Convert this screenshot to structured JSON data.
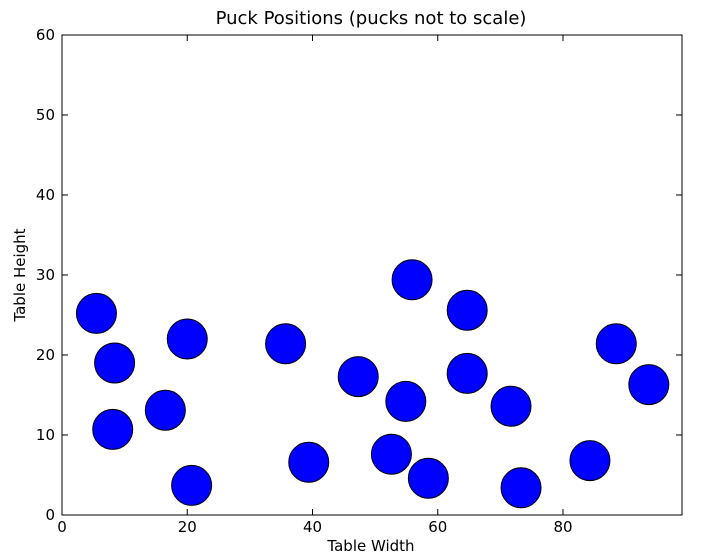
{
  "chart_data": {
    "type": "scatter",
    "title": "Puck Positions (pucks not to scale)",
    "xlabel": "Table Width",
    "ylabel": "Table Height",
    "xlim": [
      0,
      99
    ],
    "ylim": [
      0,
      60
    ],
    "xticks": [
      0,
      20,
      40,
      60,
      80
    ],
    "yticks": [
      0,
      10,
      20,
      30,
      40,
      50,
      60
    ],
    "grid": false,
    "marker_color": "#0000ff",
    "marker_edge_color": "#000000",
    "points": [
      {
        "x": 5.5,
        "y": 25.2
      },
      {
        "x": 8.4,
        "y": 19.0
      },
      {
        "x": 8.1,
        "y": 10.7
      },
      {
        "x": 16.5,
        "y": 13.1
      },
      {
        "x": 20.0,
        "y": 22.0
      },
      {
        "x": 20.7,
        "y": 3.7
      },
      {
        "x": 35.7,
        "y": 21.4
      },
      {
        "x": 39.4,
        "y": 6.6
      },
      {
        "x": 47.3,
        "y": 17.3
      },
      {
        "x": 52.6,
        "y": 7.6
      },
      {
        "x": 54.9,
        "y": 14.2
      },
      {
        "x": 55.9,
        "y": 29.4
      },
      {
        "x": 58.5,
        "y": 4.6
      },
      {
        "x": 64.7,
        "y": 25.6
      },
      {
        "x": 64.7,
        "y": 17.7
      },
      {
        "x": 71.7,
        "y": 13.6
      },
      {
        "x": 73.3,
        "y": 3.4
      },
      {
        "x": 84.3,
        "y": 6.8
      },
      {
        "x": 88.5,
        "y": 21.4
      },
      {
        "x": 93.7,
        "y": 16.3
      }
    ]
  }
}
